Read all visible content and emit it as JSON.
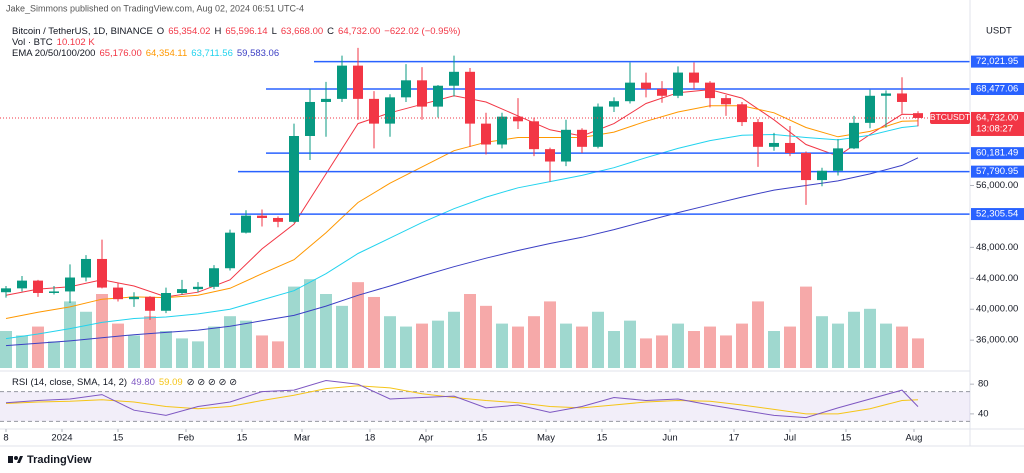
{
  "chart_data": {
    "type": "candlestick",
    "publisher": "Jake_Simmons published on TradingView.com, Aug 02, 2024 06:51 UTC-4",
    "symbol_title": "Bitcoin / TetherUS, 1D, BINANCE",
    "ohlc_readout": [
      {
        "key": "O",
        "text": "65,354.02"
      },
      {
        "key": "H",
        "text": "65,596.14"
      },
      {
        "key": "L",
        "text": "63,668.00"
      },
      {
        "key": "C",
        "text": "64,732.00"
      }
    ],
    "change": "−622.02 (−0.95%)",
    "volume_label": "Vol · BTC",
    "volume_readout": "10.102 K",
    "currency": "USDT",
    "up_color": "#089981",
    "down_color": "#f23645",
    "volume_up_color": "#9fd8cf",
    "volume_down_color": "#f6a9a9",
    "xlim": [
      -15.5,
      227.5
    ],
    "xticks": [
      {
        "value": -14,
        "label": "8"
      },
      {
        "value": 0,
        "label": "2024"
      },
      {
        "value": 14,
        "label": "15"
      },
      {
        "value": 31,
        "label": "Feb"
      },
      {
        "value": 45,
        "label": "15"
      },
      {
        "value": 60,
        "label": "Mar"
      },
      {
        "value": 77,
        "label": "18"
      },
      {
        "value": 91,
        "label": "Apr"
      },
      {
        "value": 105,
        "label": "15"
      },
      {
        "value": 121,
        "label": "May"
      },
      {
        "value": 135,
        "label": "15"
      },
      {
        "value": 152,
        "label": "Jun"
      },
      {
        "value": 168,
        "label": "17"
      },
      {
        "value": 182,
        "label": "Jul"
      },
      {
        "value": 196,
        "label": "15"
      },
      {
        "value": 213,
        "label": "Aug"
      }
    ],
    "ylim": [
      32400,
      77400
    ],
    "yticks": [
      {
        "value": 56000,
        "label": "56,000.00"
      },
      {
        "value": 48000,
        "label": "48,000.00"
      },
      {
        "value": 44000,
        "label": "44,000.00"
      },
      {
        "value": 40000,
        "label": "40,000.00"
      },
      {
        "value": 36000,
        "label": "36,000.00"
      }
    ],
    "x": [
      -14,
      -10,
      -6,
      -2,
      2,
      6,
      10,
      14,
      18,
      22,
      26,
      30,
      34,
      38,
      42,
      46,
      50,
      54,
      58,
      62,
      66,
      70,
      74,
      78,
      82,
      86,
      90,
      94,
      98,
      102,
      106,
      110,
      114,
      118,
      122,
      126,
      130,
      134,
      138,
      142,
      146,
      150,
      154,
      158,
      162,
      166,
      170,
      174,
      178,
      182,
      186,
      190,
      194,
      198,
      202,
      206,
      210,
      214
    ],
    "candles": [
      [
        42200,
        43000,
        41500,
        42700
      ],
      [
        42700,
        44300,
        42300,
        43700
      ],
      [
        43700,
        43800,
        41600,
        42100
      ],
      [
        42100,
        43000,
        41900,
        42300
      ],
      [
        42300,
        45800,
        40800,
        44100
      ],
      [
        44100,
        47000,
        43600,
        46500
      ],
      [
        46500,
        49000,
        42700,
        42800
      ],
      [
        42800,
        43400,
        41000,
        41300
      ],
      [
        41300,
        42200,
        40300,
        41600
      ],
      [
        41600,
        41700,
        38600,
        39800
      ],
      [
        39800,
        42800,
        39500,
        42100
      ],
      [
        42100,
        43800,
        41900,
        42600
      ],
      [
        42600,
        43500,
        42200,
        42900
      ],
      [
        42900,
        45700,
        42600,
        45300
      ],
      [
        45300,
        50300,
        45000,
        49900
      ],
      [
        49900,
        52800,
        49800,
        52100
      ],
      [
        52100,
        52900,
        50700,
        51800
      ],
      [
        51800,
        52000,
        50600,
        51300
      ],
      [
        51300,
        64000,
        51200,
        62400
      ],
      [
        62400,
        68500,
        59300,
        66800
      ],
      [
        66800,
        69400,
        62300,
        67200
      ],
      [
        67200,
        72800,
        66800,
        71500
      ],
      [
        71500,
        73800,
        64500,
        67200
      ],
      [
        67200,
        68200,
        60800,
        64000
      ],
      [
        64000,
        67800,
        62300,
        67400
      ],
      [
        67400,
        71700,
        66800,
        69600
      ],
      [
        69600,
        71300,
        64500,
        66200
      ],
      [
        66200,
        69000,
        64800,
        68900
      ],
      [
        68900,
        72800,
        67500,
        70700
      ],
      [
        70700,
        71200,
        61000,
        64000
      ],
      [
        64000,
        65400,
        60000,
        61300
      ],
      [
        61300,
        65400,
        60800,
        64900
      ],
      [
        64900,
        67300,
        63300,
        64300
      ],
      [
        64300,
        64800,
        59800,
        60700
      ],
      [
        60700,
        60900,
        56500,
        59100
      ],
      [
        59100,
        64500,
        58500,
        63200
      ],
      [
        63200,
        63400,
        60200,
        61000
      ],
      [
        61000,
        66600,
        60800,
        66200
      ],
      [
        66200,
        67400,
        65500,
        66900
      ],
      [
        66900,
        71900,
        66600,
        69300
      ],
      [
        69300,
        70600,
        67400,
        68500
      ],
      [
        68500,
        69500,
        66700,
        67600
      ],
      [
        67600,
        71400,
        67300,
        70600
      ],
      [
        70600,
        71900,
        68500,
        69300
      ],
      [
        69300,
        69500,
        66100,
        67300
      ],
      [
        67300,
        67700,
        65000,
        66500
      ],
      [
        66500,
        66800,
        63700,
        64200
      ],
      [
        64200,
        64600,
        58400,
        61000
      ],
      [
        61000,
        62800,
        60500,
        61500
      ],
      [
        61500,
        63700,
        59800,
        60200
      ],
      [
        60200,
        60400,
        53500,
        56700
      ],
      [
        56700,
        58300,
        55900,
        57900
      ],
      [
        57900,
        62000,
        57300,
        60800
      ],
      [
        60800,
        65000,
        60700,
        64100
      ],
      [
        64100,
        68400,
        63400,
        67600
      ],
      [
        67600,
        68300,
        63500,
        67900
      ],
      [
        67900,
        70000,
        65300,
        66800
      ],
      [
        65354.02,
        65596.14,
        63668,
        64732
      ]
    ],
    "volume_ylim": [
      0,
      100
    ],
    "volumes": [
      25,
      22,
      28,
      18,
      45,
      38,
      50,
      30,
      22,
      35,
      25,
      20,
      18,
      28,
      35,
      32,
      22,
      18,
      55,
      60,
      50,
      42,
      58,
      48,
      35,
      28,
      30,
      32,
      38,
      50,
      42,
      30,
      28,
      35,
      45,
      30,
      28,
      38,
      25,
      32,
      20,
      22,
      30,
      25,
      28,
      22,
      30,
      45,
      25,
      28,
      55,
      35,
      30,
      38,
      40,
      30,
      28,
      20
    ],
    "ema_label": "EMA 20/50/100/200",
    "ema_x": [
      -14,
      -6,
      2,
      10,
      18,
      26,
      34,
      42,
      50,
      58,
      66,
      74,
      82,
      90,
      98,
      106,
      114,
      122,
      130,
      138,
      146,
      154,
      162,
      170,
      178,
      186,
      194,
      202,
      210,
      214
    ],
    "emas": [
      {
        "color": "#f23645",
        "readout": "65,176.00",
        "values": [
          41800,
          42600,
          42900,
          43800,
          43000,
          41600,
          42200,
          43800,
          47800,
          51000,
          57500,
          64000,
          65400,
          66500,
          67600,
          66800,
          65000,
          63200,
          62400,
          64000,
          66600,
          68000,
          68400,
          67300,
          64500,
          61300,
          59800,
          62600,
          65200,
          65176
        ]
      },
      {
        "color": "#ff9800",
        "readout": "64,354.11",
        "values": [
          38800,
          39600,
          40300,
          41300,
          41600,
          41500,
          41800,
          42700,
          44600,
          46400,
          49900,
          53800,
          56300,
          58400,
          60500,
          61600,
          62200,
          62200,
          62200,
          62900,
          64300,
          65500,
          66300,
          66300,
          65400,
          63500,
          62300,
          63000,
          64300,
          64354.11
        ]
      },
      {
        "color": "#22d3ee",
        "readout": "63,711.56",
        "values": [
          36200,
          36800,
          37500,
          38300,
          38800,
          39000,
          39400,
          40000,
          41200,
          42400,
          44600,
          47200,
          49200,
          51200,
          53000,
          54500,
          55700,
          56500,
          57300,
          58300,
          59600,
          60800,
          61800,
          62500,
          62600,
          62200,
          61900,
          62500,
          63500,
          63711.56
        ]
      },
      {
        "color": "#3b3fc4",
        "readout": "59,583.06",
        "values": [
          35300,
          35600,
          35900,
          36300,
          36700,
          37000,
          37300,
          37800,
          38500,
          39200,
          40400,
          41800,
          43000,
          44300,
          45500,
          46600,
          47600,
          48500,
          49300,
          50300,
          51400,
          52500,
          53500,
          54500,
          55400,
          56000,
          56600,
          57500,
          58600,
          59583.06
        ]
      }
    ],
    "levels": [
      {
        "value": 72021.95,
        "label": "72,021.95",
        "start": 63
      },
      {
        "value": 68477.06,
        "label": "68,477.06",
        "start": 51
      },
      {
        "value": 60181.49,
        "label": "60,181.49",
        "start": 51
      },
      {
        "value": 57790.95,
        "label": "57,790.95",
        "start": 44
      },
      {
        "value": 52305.54,
        "label": "52,305.54",
        "start": 42
      }
    ],
    "level_color": "#2962ff",
    "last_price": {
      "value": 64732,
      "label": "64,732.00",
      "symbol": "BTCUSDT",
      "countdown": "13:08:27"
    },
    "rsi": {
      "label": "RSI (14, close, SMA, 14, 2)",
      "color": "#7e57c2",
      "readout": "49.80",
      "values": [
        55,
        58,
        60,
        66,
        45,
        38,
        50,
        56,
        70,
        72,
        85,
        80,
        60,
        62,
        64,
        48,
        52,
        42,
        50,
        62,
        58,
        60,
        52,
        45,
        38,
        35,
        48,
        60,
        72,
        49.8
      ],
      "sma": {
        "color": "#f5c518",
        "readout": "59.09",
        "values": [
          54,
          56,
          57,
          59,
          56,
          50,
          47,
          50,
          58,
          65,
          74,
          78,
          75,
          67,
          62,
          58,
          55,
          50,
          48,
          52,
          56,
          58,
          57,
          52,
          46,
          40,
          40,
          47,
          58,
          59.09
        ]
      },
      "icons": "⊘ ⊘ ⊘ ⊘ ⊘",
      "ylim": [
        21,
        91
      ],
      "yticks": [
        80,
        40
      ],
      "band": [
        30,
        70
      ]
    },
    "footer": "TradingView"
  }
}
